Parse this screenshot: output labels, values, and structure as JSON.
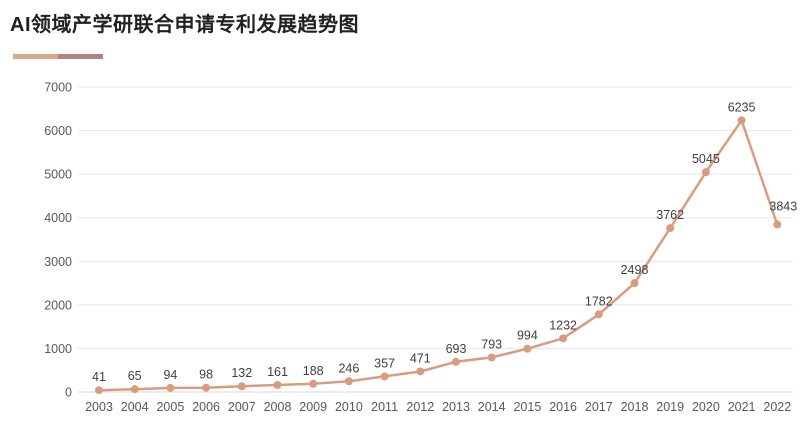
{
  "title": "AI领域产学研联合申请专利发展趋势图",
  "legend": {
    "color_left": "#dba88c",
    "color_right": "#b5837b"
  },
  "colors": {
    "line": "#d89d80",
    "marker": "#d89d80",
    "gridline": "#e7e7e7",
    "baseline": "#d9d9d9",
    "axis_label": "#595959",
    "data_label": "#404040",
    "title": "#212121"
  },
  "chart_data": {
    "type": "line",
    "title": "AI领域产学研联合申请专利发展趋势图",
    "categories": [
      "2003",
      "2004",
      "2005",
      "2006",
      "2007",
      "2008",
      "2009",
      "2010",
      "2011",
      "2012",
      "2013",
      "2014",
      "2015",
      "2016",
      "2017",
      "2018",
      "2019",
      "2020",
      "2021",
      "2022"
    ],
    "values": [
      41,
      65,
      94,
      98,
      132,
      161,
      188,
      246,
      357,
      471,
      693,
      793,
      994,
      1232,
      1782,
      2498,
      3762,
      5045,
      6235,
      3843
    ],
    "data_labels": [
      "41",
      "65",
      "94",
      "98",
      "132",
      "161",
      "188",
      "246",
      "357",
      "471",
      "693",
      "793",
      "994",
      "1232",
      "1782",
      "2498",
      "3762",
      "5045",
      "6235",
      "3843"
    ],
    "xlabel": "",
    "ylabel": "",
    "ylim": [
      0,
      7000
    ],
    "ytick_step": 1000,
    "ytick_labels": [
      "0",
      "1000",
      "2000",
      "3000",
      "4000",
      "5000",
      "6000",
      "7000"
    ],
    "grid": "horizontal",
    "markers": true,
    "legend_position": "top-left"
  }
}
